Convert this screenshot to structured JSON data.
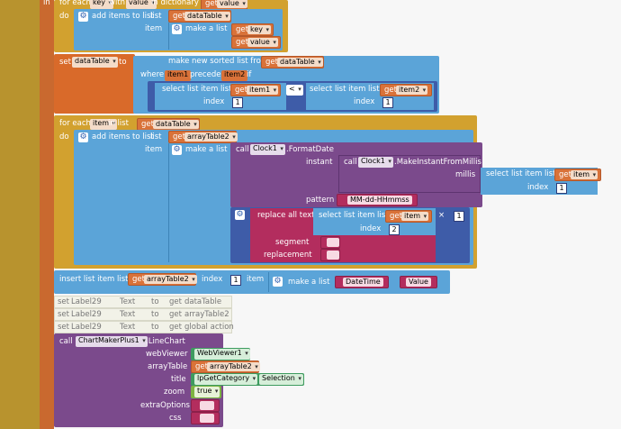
{
  "colors": {
    "control": "#d2a12f",
    "variable": "#d97239",
    "list": "#5ba4d8",
    "procedure": "#7b4a8c",
    "text": "#b32d5e",
    "math": "#3e5ca8",
    "logic": "#7cb342",
    "component": "#3e9b5f"
  },
  "blocks": {
    "foreach_dict": {
      "in": "in",
      "head": "for each",
      "key_chip": "key",
      "with": "with",
      "value_chip": "value",
      "in_dictionary": "in dictionary",
      "get": "get",
      "get_value": "value",
      "do": "do",
      "add_items": "add items to list",
      "list": "list",
      "get_list": "dataTable",
      "item": "item",
      "make_list": "make a list",
      "get_key": "key",
      "get_value2": "value"
    },
    "set_datatable": {
      "set": "set",
      "var": "dataTable",
      "to": "to",
      "sorted": "make new sorted list from",
      "get": "get",
      "get_var": "dataTable",
      "where": "where",
      "item1": "item1",
      "precedes": "precedes",
      "item2": "item2",
      "if": "if",
      "select1": "select list item  list",
      "get_item1": "item1",
      "index": "index",
      "index1": "1",
      "op": "<",
      "select2": "select list item  list",
      "get_item2": "item2",
      "index2_label": "index",
      "index2": "1"
    },
    "foreach_list": {
      "head": "for each",
      "item_chip": "item",
      "in_list": "in list",
      "get": "get",
      "get_var": "dataTable",
      "do": "do",
      "add_items": "add items to list",
      "list": "list",
      "get_list": "arrayTable2",
      "item": "item",
      "make_list": "make a list",
      "call": "call",
      "clock1": "Clock1",
      "format_date": ".FormatDate",
      "instant": "instant",
      "call2": "call",
      "clock1b": "Clock1",
      "make_instant": ".MakeInstantFromMillis",
      "millis": "millis",
      "select": "select list item  list",
      "get_item": "item",
      "index": "index",
      "index_val": "1",
      "pattern": "pattern",
      "pattern_val": "MM-dd-HHmmss",
      "replace_all": "replace all text",
      "select2": "select list item  list",
      "get_item2": "item",
      "index2_label": "index",
      "index2": "2",
      "times": "×",
      "times_val": "1",
      "segment": "segment",
      "segment_val": "",
      "replacement": "replacement",
      "replacement_val": ""
    },
    "insert": {
      "label": "insert list item  list",
      "get": "get",
      "get_var": "arrayTable2",
      "index": "index",
      "index_val": "1",
      "item": "item",
      "make_list": "make a list",
      "s1": "DateTime",
      "s2": "Value"
    },
    "faded_sets": [
      {
        "set": "set",
        "comp": "Label29",
        "prop": "Text",
        "to": "to",
        "get": "get",
        "var": "dataTable"
      },
      {
        "set": "set",
        "comp": "Label29",
        "prop": "Text",
        "to": "to",
        "get": "get",
        "var": "arrayTable2"
      },
      {
        "set": "set",
        "comp": "Label29",
        "prop": "Text",
        "to": "to",
        "get": "get",
        "var": "global action"
      }
    ],
    "chart_call": {
      "call": "call",
      "comp": "ChartMakerPlus1",
      "method": ".LineChart",
      "webViewer": "webViewer",
      "webViewer_val": "WebViewer1",
      "arrayTable": "arrayTable",
      "get": "get",
      "arrayTable_val": "arrayTable2",
      "title": "title",
      "title_comp": "lpGetCategory",
      "title_prop": "Selection",
      "zoom": "zoom",
      "zoom_val": "true",
      "extraOptions": "extraOptions",
      "css": "css"
    }
  }
}
